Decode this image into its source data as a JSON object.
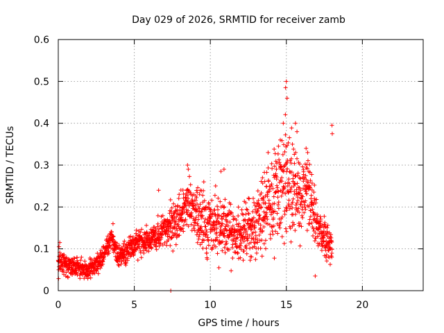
{
  "chart_data": {
    "type": "scatter",
    "title": "Day 029 of 2026, SRMTID for receiver zamb",
    "xlabel": "GPS time / hours",
    "ylabel": "SRMTID / TECUs",
    "xlim": [
      0,
      24
    ],
    "ylim": [
      0,
      0.6
    ],
    "xticks": [
      0,
      5,
      10,
      15,
      20
    ],
    "xtick_labels": [
      "0",
      "5",
      "10",
      "15",
      "20"
    ],
    "yticks": [
      0,
      0.1,
      0.2,
      0.3,
      0.4,
      0.5,
      0.6
    ],
    "ytick_labels": [
      "0",
      "0.1",
      "0.2",
      "0.3",
      "0.4",
      "0.5",
      "0.6"
    ],
    "grid": true,
    "marker": "+",
    "series": [
      {
        "name": "SRMTID",
        "color": "#ff0000",
        "profile": [
          {
            "x": 0.0,
            "center": 0.07,
            "spread": 0.02
          },
          {
            "x": 1.0,
            "center": 0.06,
            "spread": 0.015
          },
          {
            "x": 2.0,
            "center": 0.05,
            "spread": 0.015
          },
          {
            "x": 2.8,
            "center": 0.07,
            "spread": 0.015
          },
          {
            "x": 3.5,
            "center": 0.13,
            "spread": 0.02
          },
          {
            "x": 4.0,
            "center": 0.08,
            "spread": 0.02
          },
          {
            "x": 5.0,
            "center": 0.11,
            "spread": 0.02
          },
          {
            "x": 6.0,
            "center": 0.12,
            "spread": 0.02
          },
          {
            "x": 7.0,
            "center": 0.15,
            "spread": 0.03
          },
          {
            "x": 8.0,
            "center": 0.17,
            "spread": 0.04
          },
          {
            "x": 8.5,
            "center": 0.22,
            "spread": 0.04
          },
          {
            "x": 9.0,
            "center": 0.18,
            "spread": 0.05
          },
          {
            "x": 10.0,
            "center": 0.16,
            "spread": 0.05
          },
          {
            "x": 11.0,
            "center": 0.15,
            "spread": 0.05
          },
          {
            "x": 12.0,
            "center": 0.13,
            "spread": 0.04
          },
          {
            "x": 13.0,
            "center": 0.15,
            "spread": 0.05
          },
          {
            "x": 13.5,
            "center": 0.2,
            "spread": 0.06
          },
          {
            "x": 14.0,
            "center": 0.22,
            "spread": 0.07
          },
          {
            "x": 15.0,
            "center": 0.25,
            "spread": 0.09
          },
          {
            "x": 15.5,
            "center": 0.26,
            "spread": 0.08
          },
          {
            "x": 16.0,
            "center": 0.22,
            "spread": 0.06
          },
          {
            "x": 16.5,
            "center": 0.25,
            "spread": 0.06
          },
          {
            "x": 17.0,
            "center": 0.15,
            "spread": 0.04
          },
          {
            "x": 17.5,
            "center": 0.12,
            "spread": 0.03
          },
          {
            "x": 18.0,
            "center": 0.1,
            "spread": 0.03
          }
        ],
        "extra_points": [
          [
            15.0,
            0.5
          ],
          [
            14.95,
            0.485
          ],
          [
            15.05,
            0.46
          ],
          [
            14.8,
            0.4
          ],
          [
            15.6,
            0.4
          ],
          [
            15.7,
            0.38
          ],
          [
            15.4,
            0.35
          ],
          [
            18.0,
            0.395
          ],
          [
            18.02,
            0.375
          ],
          [
            8.5,
            0.3
          ],
          [
            8.55,
            0.29
          ],
          [
            10.9,
            0.29
          ],
          [
            10.7,
            0.285
          ],
          [
            7.4,
            0.0
          ],
          [
            6.6,
            0.24
          ],
          [
            16.9,
            0.035
          ],
          [
            16.3,
            0.34
          ],
          [
            16.4,
            0.33
          ],
          [
            0.1,
            0.115
          ],
          [
            0.05,
            0.105
          ],
          [
            3.6,
            0.16
          ],
          [
            13.8,
            0.33
          ],
          [
            14.6,
            0.36
          ]
        ]
      }
    ]
  }
}
